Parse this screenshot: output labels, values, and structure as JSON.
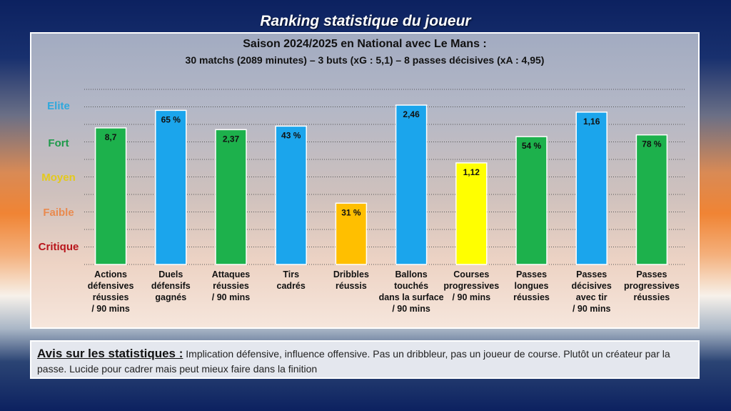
{
  "header": {
    "title": "Ranking statistique du joueur"
  },
  "panel": {
    "subtitle": "Saison 2024/2025 en National avec Le Mans :",
    "summary": "30 matchs (2089 minutes) – 3 buts (xG : 5,1) – 8 passes décisives (xA : 4,95)"
  },
  "chart_data": {
    "type": "bar",
    "levels": [
      {
        "label": "Elite",
        "color": "#2ea8dd"
      },
      {
        "label": "Fort",
        "color": "#1e9a4a"
      },
      {
        "label": "Moyen",
        "color": "#e4c91c"
      },
      {
        "label": "Faible",
        "color": "#e98a4f"
      },
      {
        "label": "Critique",
        "color": "#b8151b"
      }
    ],
    "ylim": [
      0,
      100
    ],
    "categories": [
      {
        "label": [
          "Actions",
          "défensives",
          "réussies",
          "/ 90 mins"
        ],
        "value_label": "8,7",
        "score": 78,
        "color": "#1db14c"
      },
      {
        "label": [
          "Duels",
          "défensifs",
          "gagnés"
        ],
        "value_label": "65 %",
        "score": 88,
        "color": "#1ba5ec"
      },
      {
        "label": [
          "Attaques",
          "réussies",
          "/ 90 mins"
        ],
        "value_label": "2,37",
        "score": 77,
        "color": "#1db14c"
      },
      {
        "label": [
          "Tirs",
          "cadrés"
        ],
        "value_label": "43 %",
        "score": 79,
        "color": "#1ba5ec"
      },
      {
        "label": [
          "Dribbles",
          "réussis"
        ],
        "value_label": "31 %",
        "score": 35,
        "color": "#ffbf00"
      },
      {
        "label": [
          "Ballons",
          "touchés",
          "dans la surface",
          "/ 90 mins"
        ],
        "value_label": "2,46",
        "score": 91,
        "color": "#1ba5ec"
      },
      {
        "label": [
          "Courses",
          "progressives",
          "/ 90 mins"
        ],
        "value_label": "1,12",
        "score": 58,
        "color": "#ffff00"
      },
      {
        "label": [
          "Passes",
          "longues",
          "réussies"
        ],
        "value_label": "54 %",
        "score": 73,
        "color": "#1db14c"
      },
      {
        "label": [
          "Passes",
          "décisives",
          "avec tir",
          "/ 90 mins"
        ],
        "value_label": "1,16",
        "score": 87,
        "color": "#1ba5ec"
      },
      {
        "label": [
          "Passes",
          "progressives",
          "réussies"
        ],
        "value_label": "78 %",
        "score": 74,
        "color": "#1db14c"
      }
    ],
    "grid": true
  },
  "comment": {
    "heading": "Avis sur les statistiques :",
    "text": " Implication défensive, influence offensive. Pas un dribbleur, pas un joueur de course. Plutôt un créateur par la passe. Lucide pour cadrer mais peut mieux faire dans la finition"
  }
}
